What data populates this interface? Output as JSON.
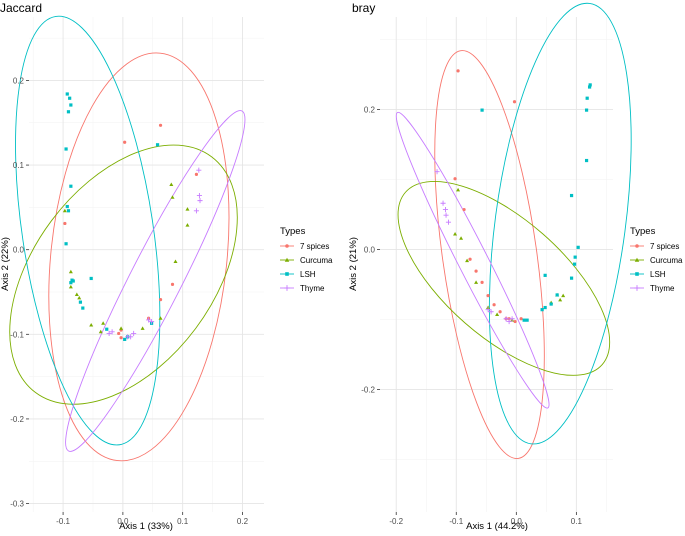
{
  "legend": {
    "title": "Types",
    "entries": [
      {
        "name": "7 spices",
        "color": "#F8766D",
        "shape": "circle"
      },
      {
        "name": "Curcuma",
        "color": "#7CAE00",
        "shape": "triangle"
      },
      {
        "name": "LSH",
        "color": "#00BFC4",
        "shape": "square"
      },
      {
        "name": "Thyme",
        "color": "#C77CFF",
        "shape": "plus"
      }
    ]
  },
  "chart_data": [
    {
      "type": "scatter",
      "title": "Jaccard",
      "xlabel": "Axis 1 (33%)",
      "ylabel": "Axis 2 (22%)",
      "xlim": [
        -0.157,
        0.236
      ],
      "ylim": [
        -0.31,
        0.275
      ],
      "xticks": [
        -0.1,
        0.0,
        0.1,
        0.2
      ],
      "xticklabels": [
        "-0.1",
        "0.0",
        "0.1",
        "0.2"
      ],
      "yticks": [
        -0.3,
        -0.2,
        -0.1,
        0.0,
        0.1,
        0.2
      ],
      "yticklabels": [
        "-0.3",
        "-0.2",
        "-0.1",
        "0.0",
        "0.1",
        "0.2"
      ],
      "grid": true,
      "series": [
        {
          "name": "7 spices",
          "points": [
            [
              0.003,
              0.127
            ],
            [
              0.063,
              0.147
            ],
            [
              0.123,
              0.089
            ],
            [
              0.083,
              -0.041
            ],
            [
              0.063,
              -0.059
            ],
            [
              0.043,
              -0.081
            ],
            [
              -0.003,
              -0.095
            ],
            [
              -0.003,
              -0.104
            ],
            [
              -0.007,
              -0.099
            ],
            [
              -0.097,
              0.031
            ]
          ]
        },
        {
          "name": "Curcuma",
          "points": [
            [
              0.081,
              0.077
            ],
            [
              0.083,
              0.062
            ],
            [
              0.108,
              0.048
            ],
            [
              0.108,
              0.029
            ],
            [
              0.088,
              -0.014
            ],
            [
              0.063,
              -0.081
            ],
            [
              0.033,
              -0.093
            ],
            [
              -0.003,
              -0.093
            ],
            [
              -0.033,
              -0.087
            ],
            [
              -0.037,
              -0.097
            ],
            [
              -0.053,
              -0.089
            ],
            [
              -0.073,
              -0.057
            ],
            [
              -0.077,
              -0.053
            ],
            [
              -0.087,
              -0.026
            ],
            [
              -0.087,
              -0.044
            ],
            [
              -0.097,
              0.046
            ]
          ]
        },
        {
          "name": "LSH",
          "points": [
            [
              -0.093,
              0.184
            ],
            [
              -0.089,
              0.179
            ],
            [
              -0.087,
              0.171
            ],
            [
              -0.091,
              0.163
            ],
            [
              -0.095,
              0.119
            ],
            [
              -0.087,
              0.075
            ],
            [
              -0.093,
              0.051
            ],
            [
              -0.091,
              0.046
            ],
            [
              -0.095,
              0.007
            ],
            [
              -0.085,
              -0.036
            ],
            [
              -0.087,
              -0.039
            ],
            [
              -0.083,
              -0.037
            ],
            [
              -0.071,
              -0.062
            ],
            [
              -0.067,
              -0.069
            ],
            [
              -0.053,
              -0.034
            ],
            [
              -0.027,
              -0.094
            ],
            [
              0.003,
              -0.106
            ],
            [
              0.008,
              -0.103
            ],
            [
              0.048,
              -0.087
            ],
            [
              0.058,
              0.124
            ]
          ]
        },
        {
          "name": "Thyme",
          "points": [
            [
              0.127,
              0.094
            ],
            [
              0.128,
              0.064
            ],
            [
              0.129,
              0.058
            ],
            [
              0.123,
              0.046
            ],
            [
              0.043,
              -0.083
            ],
            [
              0.048,
              -0.085
            ],
            [
              0.008,
              -0.103
            ],
            [
              0.013,
              -0.103
            ],
            [
              0.018,
              -0.099
            ],
            [
              -0.018,
              -0.097
            ],
            [
              -0.023,
              -0.099
            ]
          ]
        }
      ]
    },
    {
      "type": "scatter",
      "title": "bray",
      "xlabel": "Axis 1 (44.2%)",
      "ylabel": "Axis 2 (21%)",
      "xlim": [
        -0.227,
        0.161
      ],
      "ylim": [
        -0.375,
        0.332
      ],
      "xticks": [
        -0.2,
        -0.1,
        0.0,
        0.1
      ],
      "xticklabels": [
        "-0.2",
        "-0.1",
        "0.0",
        "0.1"
      ],
      "yticks": [
        -0.2,
        0.0,
        0.2
      ],
      "yticklabels": [
        "-0.2",
        "0.0",
        "0.2"
      ],
      "grid": true,
      "series": [
        {
          "name": "7 spices",
          "points": [
            [
              -0.097,
              0.255
            ],
            [
              -0.003,
              0.211
            ],
            [
              -0.102,
              0.101
            ],
            [
              -0.087,
              0.057
            ],
            [
              -0.077,
              -0.014
            ],
            [
              -0.067,
              -0.031
            ],
            [
              -0.057,
              -0.047
            ],
            [
              -0.047,
              -0.066
            ],
            [
              -0.037,
              -0.079
            ],
            [
              -0.027,
              -0.089
            ],
            [
              -0.017,
              -0.099
            ],
            [
              -0.012,
              -0.099
            ],
            [
              -0.002,
              -0.103
            ],
            [
              0.008,
              -0.099
            ]
          ]
        },
        {
          "name": "Curcuma",
          "points": [
            [
              -0.097,
              0.085
            ],
            [
              -0.102,
              0.022
            ],
            [
              -0.092,
              0.016
            ],
            [
              -0.082,
              -0.016
            ],
            [
              -0.067,
              -0.047
            ],
            [
              -0.047,
              -0.083
            ],
            [
              -0.032,
              -0.093
            ],
            [
              -0.007,
              -0.101
            ],
            [
              0.058,
              -0.076
            ],
            [
              0.068,
              -0.065
            ],
            [
              0.073,
              -0.072
            ],
            [
              0.078,
              -0.066
            ]
          ]
        },
        {
          "name": "LSH",
          "points": [
            [
              0.123,
              0.235
            ],
            [
              0.122,
              0.232
            ],
            [
              0.118,
              0.216
            ],
            [
              0.117,
              0.199
            ],
            [
              0.117,
              0.127
            ],
            [
              0.092,
              0.077
            ],
            [
              0.103,
              0.003
            ],
            [
              0.098,
              -0.011
            ],
            [
              0.097,
              -0.021
            ],
            [
              0.092,
              -0.041
            ],
            [
              0.068,
              -0.065
            ],
            [
              0.058,
              -0.078
            ],
            [
              0.048,
              -0.083
            ],
            [
              0.043,
              -0.086
            ],
            [
              0.048,
              -0.037
            ],
            [
              0.018,
              -0.101
            ],
            [
              0.013,
              -0.101
            ],
            [
              -0.057,
              0.199
            ]
          ]
        },
        {
          "name": "Thyme",
          "points": [
            [
              -0.132,
              0.111
            ],
            [
              -0.122,
              0.066
            ],
            [
              -0.118,
              0.057
            ],
            [
              -0.117,
              0.049
            ],
            [
              -0.113,
              0.039
            ],
            [
              -0.047,
              -0.086
            ],
            [
              -0.042,
              -0.089
            ],
            [
              -0.017,
              -0.099
            ],
            [
              -0.012,
              -0.103
            ],
            [
              -0.007,
              -0.099
            ]
          ]
        }
      ]
    }
  ]
}
